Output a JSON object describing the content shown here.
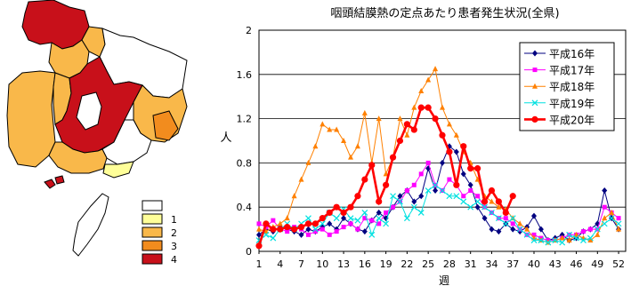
{
  "map": {
    "legend": [
      {
        "label": "1",
        "color": "#ffff99"
      },
      {
        "label": "2",
        "color": "#f9b84a"
      },
      {
        "label": "3",
        "color": "#f28c1e"
      },
      {
        "label": "4",
        "color": "#c8101a"
      }
    ],
    "blank_color": "#ffffff",
    "outline_color": "#000000"
  },
  "chart_data": {
    "type": "line",
    "title": "咽頭結膜熱の定点あたり患者発生状況(全県)",
    "xlabel": "週",
    "ylabel": "人",
    "xlim": [
      1,
      53
    ],
    "ylim": [
      0,
      2
    ],
    "yticks": [
      0,
      0.4,
      0.8,
      1.2,
      1.6,
      2
    ],
    "yticklabels": [
      "0",
      "0.4",
      "0.8",
      "1.2",
      "1.6",
      "2"
    ],
    "xticks": [
      1,
      4,
      7,
      10,
      13,
      16,
      19,
      22,
      25,
      28,
      31,
      34,
      37,
      40,
      43,
      46,
      49,
      52
    ],
    "grid": "horizontal",
    "legend_position": "top-right",
    "series": [
      {
        "name": "平成16年",
        "color": "#000080",
        "marker": "diamond",
        "values": [
          0.15,
          0.2,
          0.18,
          0.22,
          0.2,
          0.18,
          0.15,
          0.2,
          0.18,
          0.22,
          0.25,
          0.2,
          0.3,
          0.25,
          0.2,
          0.18,
          0.28,
          0.35,
          0.3,
          0.4,
          0.5,
          0.55,
          0.45,
          0.5,
          0.75,
          0.55,
          0.8,
          0.95,
          0.9,
          0.7,
          0.6,
          0.4,
          0.3,
          0.2,
          0.18,
          0.25,
          0.2,
          0.18,
          0.22,
          0.32,
          0.2,
          0.1,
          0.12,
          0.15,
          0.1,
          0.12,
          0.18,
          0.2,
          0.25,
          0.55,
          0.3,
          0.2
        ]
      },
      {
        "name": "平成17年",
        "color": "#ff00ff",
        "marker": "square",
        "values": [
          0.25,
          0.22,
          0.28,
          0.2,
          0.18,
          0.22,
          0.2,
          0.15,
          0.18,
          0.2,
          0.15,
          0.18,
          0.22,
          0.25,
          0.2,
          0.3,
          0.28,
          0.25,
          0.35,
          0.4,
          0.45,
          0.55,
          0.6,
          0.7,
          0.8,
          0.6,
          0.55,
          0.65,
          0.6,
          0.5,
          0.55,
          0.5,
          0.4,
          0.35,
          0.3,
          0.3,
          0.25,
          0.2,
          0.15,
          0.15,
          0.12,
          0.1,
          0.1,
          0.12,
          0.15,
          0.15,
          0.18,
          0.2,
          0.2,
          0.4,
          0.35,
          0.3
        ]
      },
      {
        "name": "平成18年",
        "color": "#ff8000",
        "marker": "triangle",
        "values": [
          0.2,
          0.18,
          0.22,
          0.25,
          0.3,
          0.5,
          0.65,
          0.8,
          0.95,
          1.15,
          1.1,
          1.1,
          1.0,
          0.85,
          0.95,
          1.25,
          0.8,
          1.2,
          0.7,
          0.85,
          1.2,
          1.05,
          1.3,
          1.45,
          1.55,
          1.65,
          1.3,
          1.15,
          1.05,
          0.9,
          0.8,
          0.65,
          0.5,
          0.45,
          0.4,
          0.38,
          0.3,
          0.25,
          0.2,
          0.12,
          0.1,
          0.08,
          0.1,
          0.12,
          0.1,
          0.15,
          0.12,
          0.1,
          0.15,
          0.3,
          0.35,
          0.2
        ]
      },
      {
        "name": "平成19年",
        "color": "#00e0e0",
        "marker": "x",
        "values": [
          0.1,
          0.15,
          0.12,
          0.2,
          0.25,
          0.2,
          0.25,
          0.3,
          0.2,
          0.25,
          0.35,
          0.3,
          0.38,
          0.3,
          0.28,
          0.35,
          0.15,
          0.3,
          0.25,
          0.5,
          0.45,
          0.3,
          0.4,
          0.35,
          0.55,
          0.6,
          0.55,
          0.5,
          0.5,
          0.45,
          0.4,
          0.45,
          0.4,
          0.35,
          0.3,
          0.25,
          0.3,
          0.2,
          0.15,
          0.1,
          0.1,
          0.08,
          0.1,
          0.08,
          0.15,
          0.12,
          0.1,
          0.12,
          0.2,
          0.25,
          0.3,
          0.25
        ]
      },
      {
        "name": "平成20年",
        "color": "#ff0000",
        "marker": "circle",
        "values": [
          0.05,
          0.25,
          0.2,
          0.2,
          0.22,
          0.2,
          0.22,
          0.25,
          0.25,
          0.3,
          0.35,
          0.4,
          0.35,
          0.4,
          0.5,
          0.65,
          0.78,
          0.45,
          0.6,
          0.85,
          1.0,
          1.15,
          1.1,
          1.3,
          1.3,
          1.2,
          1.05,
          0.9,
          0.6,
          0.95,
          0.75,
          0.75,
          0.45,
          0.55,
          0.45,
          0.35,
          0.5,
          null,
          null,
          null,
          null,
          null,
          null,
          null,
          null,
          null,
          null,
          null,
          null,
          null,
          null,
          null
        ]
      }
    ]
  }
}
